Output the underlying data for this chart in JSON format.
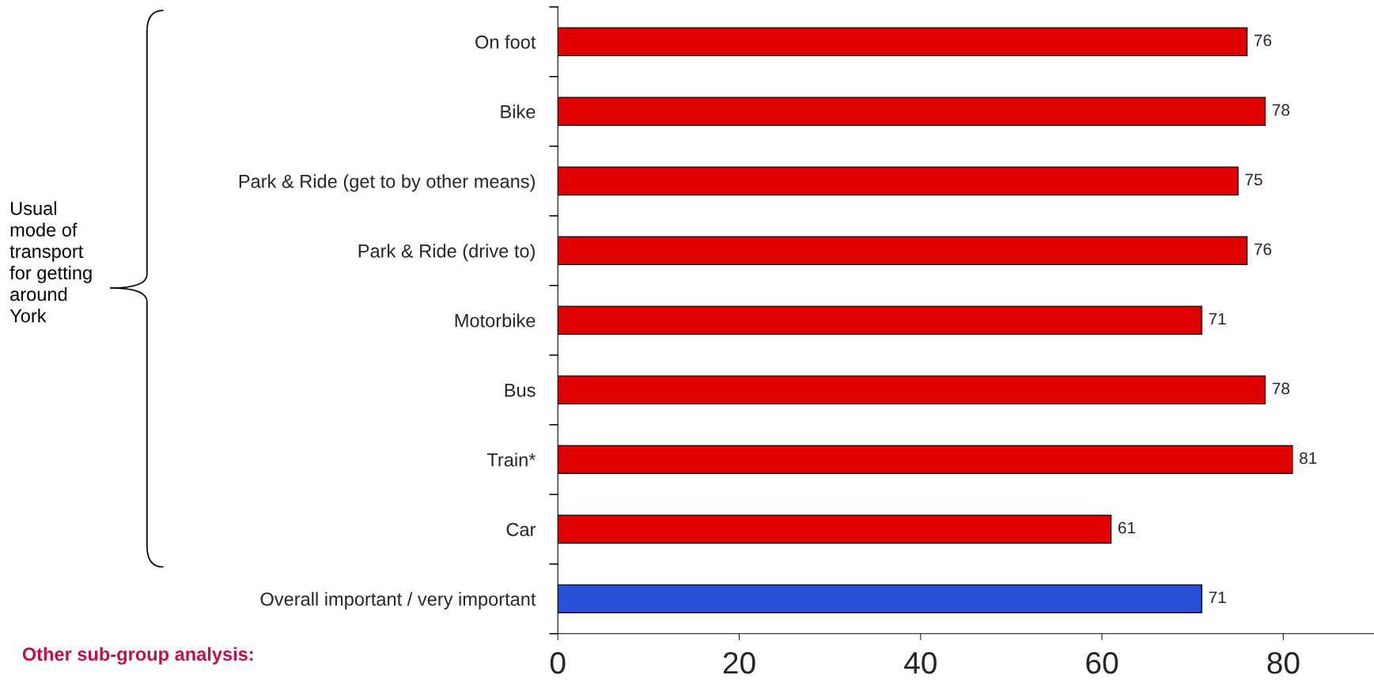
{
  "chart_data": {
    "type": "bar",
    "orientation": "horizontal",
    "categories": [
      "On foot",
      "Bike",
      "Park & Ride (get to by other means)",
      "Park & Ride (drive to)",
      "Motorbike",
      "Bus",
      "Train*",
      "Car",
      "Overall important / very important"
    ],
    "values": [
      76,
      78,
      75,
      76,
      71,
      78,
      81,
      61,
      71
    ],
    "colors": [
      "#e00000",
      "#e00000",
      "#e00000",
      "#e00000",
      "#e00000",
      "#e00000",
      "#e00000",
      "#e00000",
      "#2850d8"
    ],
    "xlim": [
      0,
      90
    ],
    "xticks": [
      0,
      20,
      40,
      60,
      80
    ],
    "data_labels": true,
    "grid": false,
    "legend": false,
    "annotations": [
      "Usual\nmode of\ntransport\nfor getting\naround\nYork",
      "Other sub-group analysis:"
    ]
  }
}
